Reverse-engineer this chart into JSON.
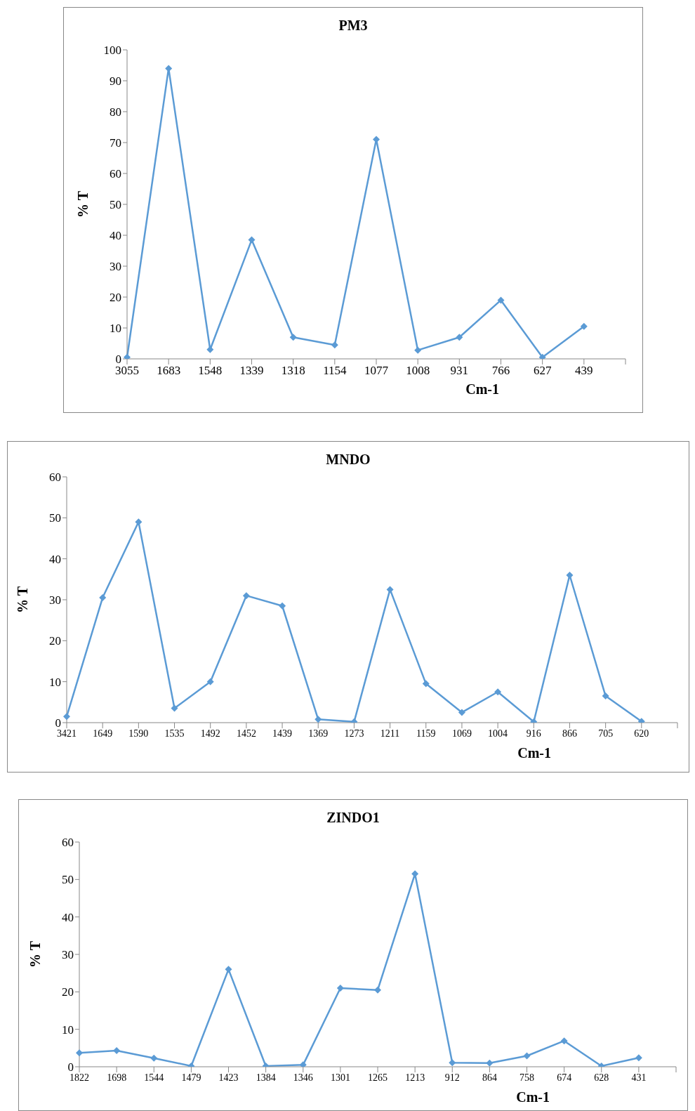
{
  "chart_data": [
    {
      "type": "line",
      "title": "PM3",
      "xlabel": "Cm-1",
      "ylabel": "% T",
      "categories": [
        "3055",
        "1683",
        "1548",
        "1339",
        "1318",
        "1154",
        "1077",
        "1008",
        "931",
        "766",
        "627",
        "439",
        null
      ],
      "series": [
        {
          "color": "#5b9bd5",
          "values": [
            0.5,
            94,
            3,
            38.5,
            7,
            4.5,
            71,
            2.8,
            7,
            19,
            0.5,
            10.5,
            null
          ]
        }
      ],
      "ylim": [
        0,
        100
      ],
      "yticks": [
        0,
        10,
        20,
        30,
        40,
        50,
        60,
        70,
        80,
        90,
        100
      ],
      "grid": false,
      "legend": false,
      "marker": "diamond"
    },
    {
      "type": "line",
      "title": "MNDO",
      "xlabel": "Cm-1",
      "ylabel": "% T",
      "categories": [
        "3421",
        "1649",
        "1590",
        "1535",
        "1492",
        "1452",
        "1439",
        "1369",
        "1273",
        "1211",
        "1159",
        "1069",
        "1004",
        "916",
        "866",
        "705",
        "620",
        null
      ],
      "series": [
        {
          "color": "#5b9bd5",
          "values": [
            1.5,
            30.5,
            49,
            3.5,
            10,
            31,
            28.5,
            0.8,
            0.2,
            32.5,
            9.5,
            2.5,
            7.5,
            0.2,
            36,
            6.5,
            0.3,
            null
          ]
        }
      ],
      "ylim": [
        0,
        60
      ],
      "yticks": [
        0,
        10,
        20,
        30,
        40,
        50,
        60
      ],
      "grid": false,
      "legend": false,
      "marker": "diamond"
    },
    {
      "type": "line",
      "title": "ZINDO1",
      "xlabel": "Cm-1",
      "ylabel": "% T",
      "categories": [
        "1822",
        "1698",
        "1544",
        "1479",
        "1423",
        "1384",
        "1346",
        "1301",
        "1265",
        "1213",
        "912",
        "864",
        "758",
        "674",
        "628",
        "431",
        null
      ],
      "series": [
        {
          "color": "#5b9bd5",
          "values": [
            3.7,
            4.3,
            2.3,
            0.2,
            26,
            0.2,
            0.5,
            21,
            20.5,
            51.5,
            1.1,
            1,
            2.9,
            6.9,
            0.2,
            2.4,
            null
          ]
        }
      ],
      "ylim": [
        0,
        60
      ],
      "yticks": [
        0,
        10,
        20,
        30,
        40,
        50,
        60
      ],
      "grid": false,
      "legend": false,
      "marker": "diamond"
    }
  ]
}
